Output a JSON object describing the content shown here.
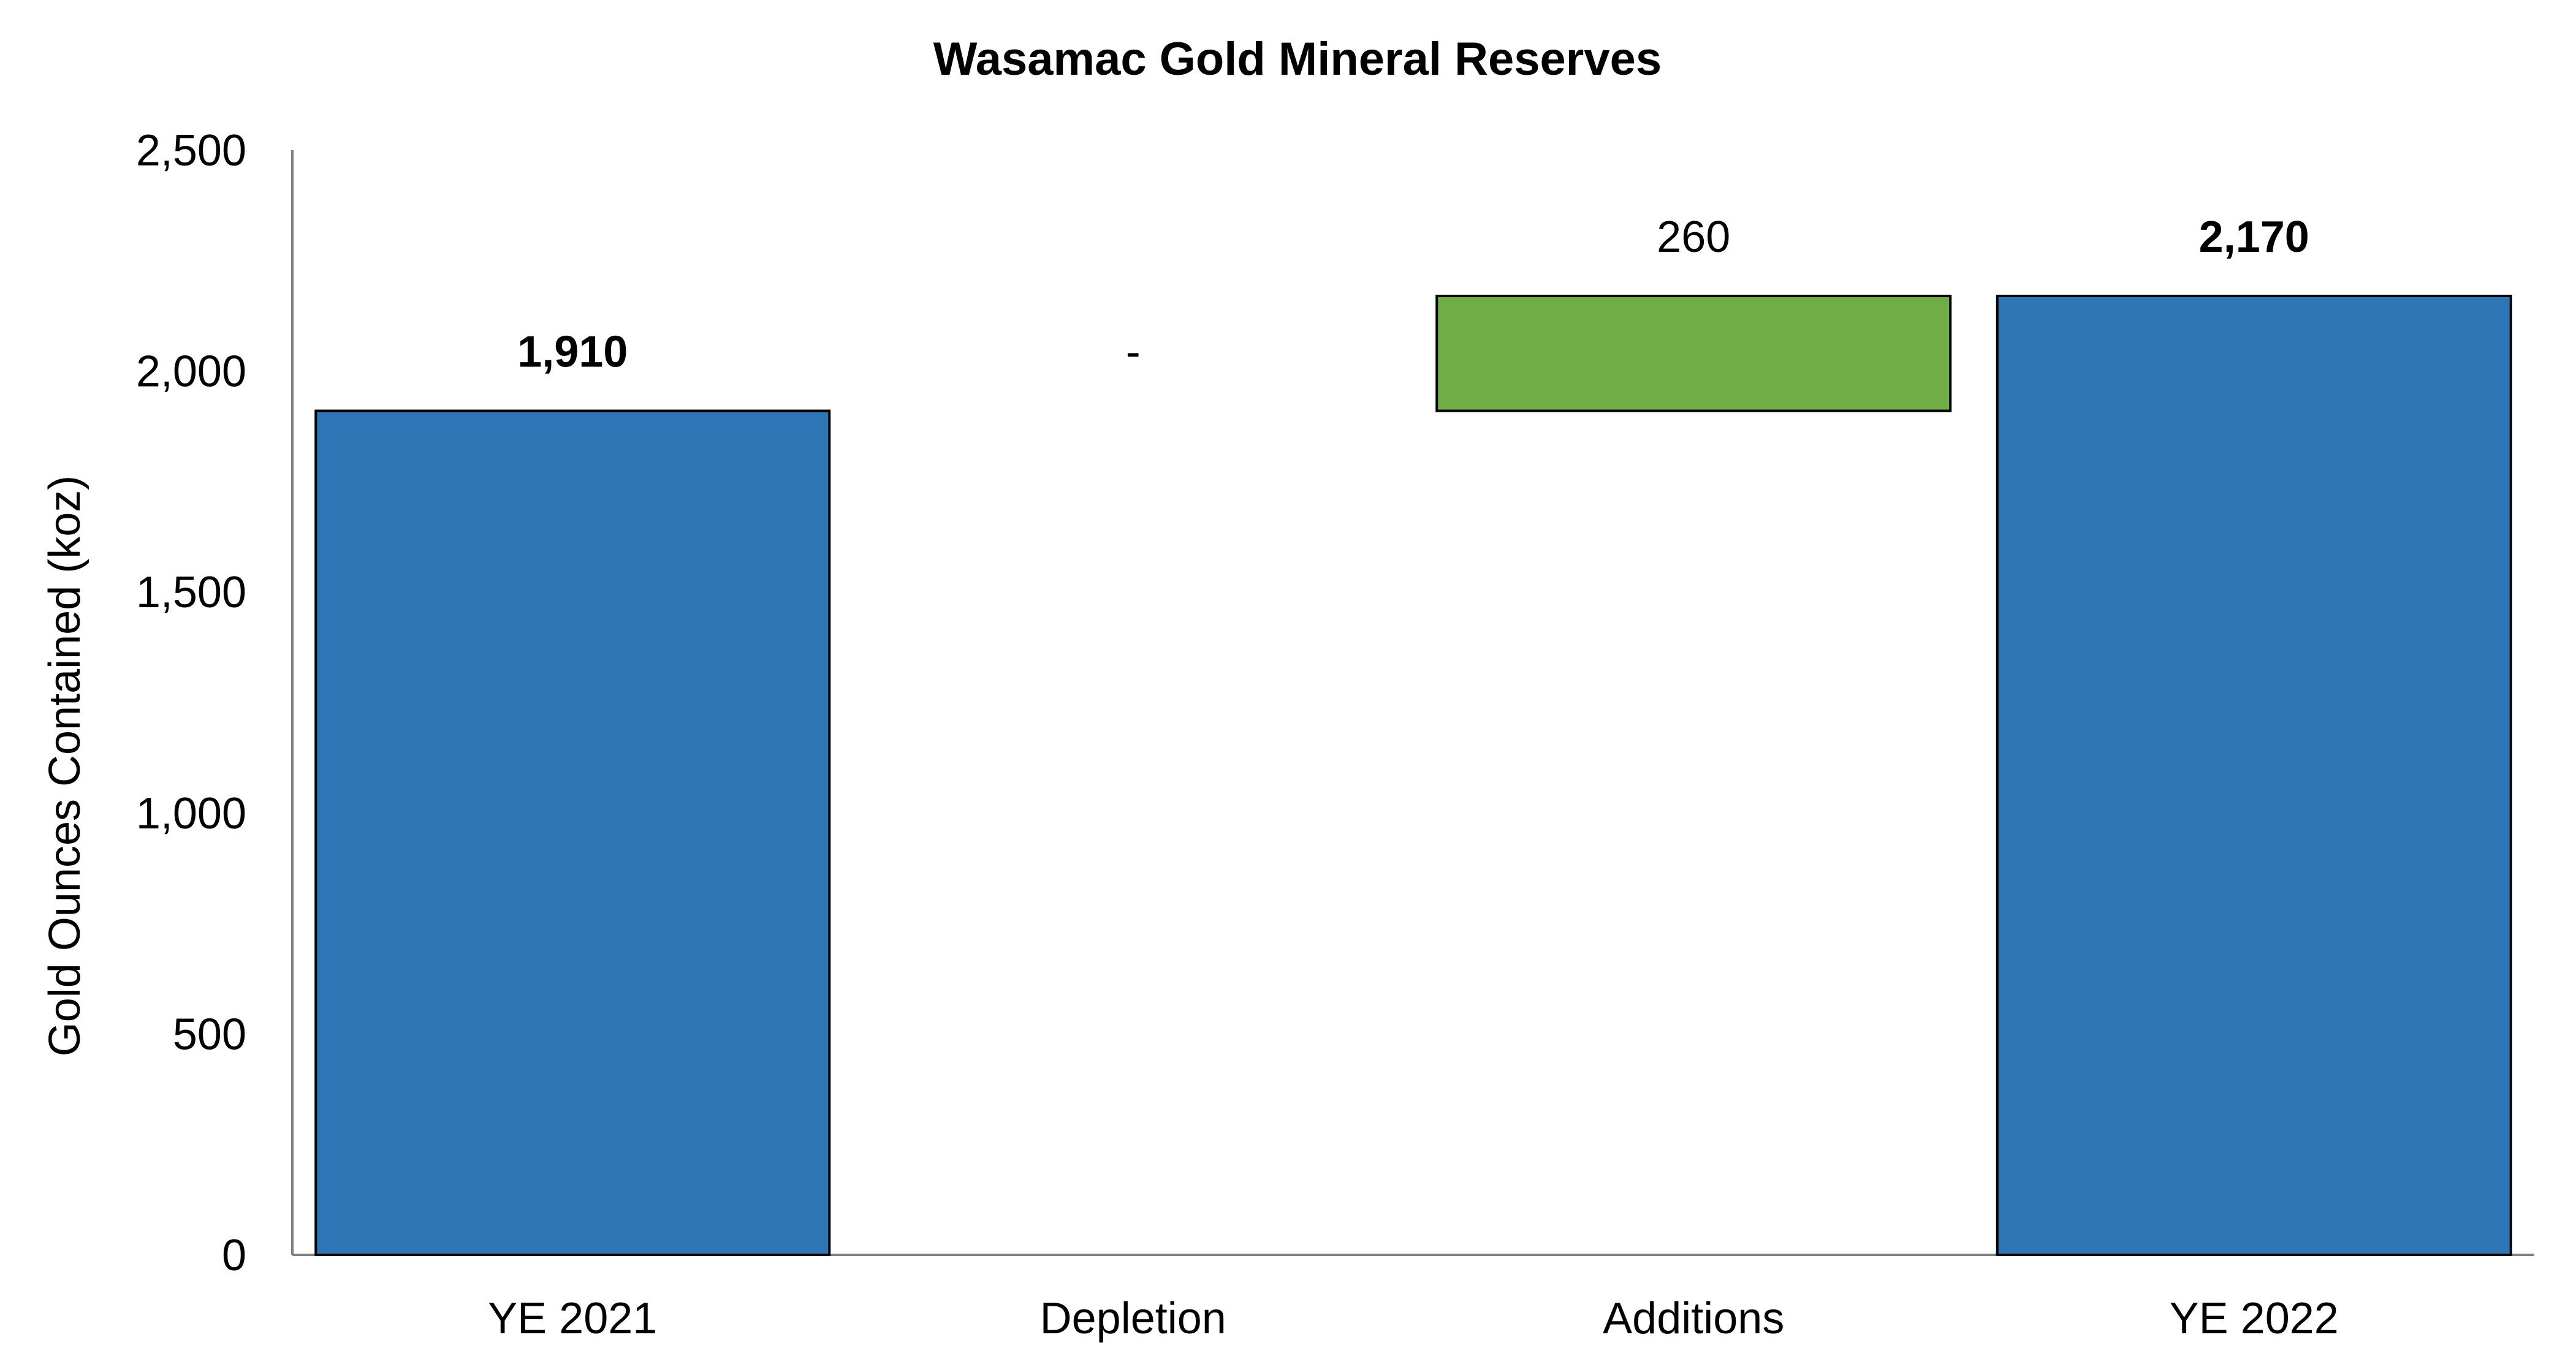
{
  "chart_data": {
    "type": "bar",
    "subtype": "waterfall",
    "title": "Wasamac Gold Mineral Reserves",
    "xlabel": "",
    "ylabel": "Gold Ounces Contained (koz)",
    "ylim": [
      0,
      2500
    ],
    "yticks": [
      "0",
      "500",
      "1,000",
      "1,500",
      "2,000",
      "2,500"
    ],
    "categories": [
      "YE 2021",
      "Depletion",
      "Additions",
      "YE 2022"
    ],
    "bars": [
      {
        "category": "YE 2021",
        "kind": "total",
        "base": 0,
        "value": 1910,
        "label": "1,910",
        "label_bold": true,
        "color": "#2E75B6"
      },
      {
        "category": "Depletion",
        "kind": "change",
        "base": 1910,
        "value": 0,
        "label": "-",
        "label_bold": false,
        "color": "#2E75B6"
      },
      {
        "category": "Additions",
        "kind": "change",
        "base": 1910,
        "value": 260,
        "label": "260",
        "label_bold": false,
        "color": "#70AD47"
      },
      {
        "category": "YE 2022",
        "kind": "total",
        "base": 0,
        "value": 2170,
        "label": "2,170",
        "label_bold": true,
        "color": "#2E75B6"
      }
    ],
    "grid": false,
    "legend": "none"
  }
}
